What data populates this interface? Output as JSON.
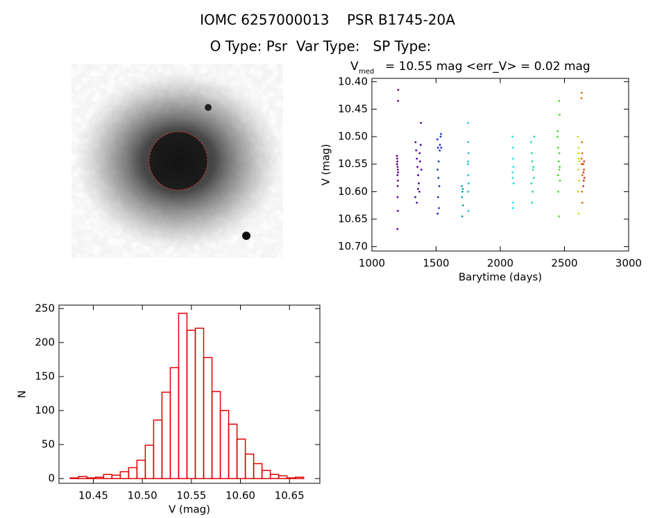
{
  "header": {
    "title": "IOMC 6257000013    PSR B1745-20A",
    "subtitle": "O Type: Psr  Var Type:   SP Type:"
  },
  "chart_data": [
    {
      "type": "scatter",
      "title": "V",
      "title_subscript": "med",
      "title_rest": "= 10.55 mag <err_V> = 0.02 mag",
      "x_label": "Barytime (days)",
      "y_label": "V (mag)",
      "xlim": [
        1000,
        3000
      ],
      "ylim": [
        10.708,
        10.394
      ],
      "xticks": [
        1000,
        1500,
        2000,
        2500,
        3000
      ],
      "yticks": [
        {
          "value": 10.4,
          "label": "10.40"
        },
        10.45,
        {
          "value": 10.5,
          "label": "10.50"
        },
        10.55,
        {
          "value": 10.6,
          "label": "10.60"
        },
        10.65,
        {
          "value": 10.7,
          "label": "10.70"
        }
      ],
      "series": [
        {
          "color": "#60007f",
          "x": [
            1195,
            1198,
            1200,
            1202,
            1199,
            1203,
            1201,
            1197,
            1205,
            1204,
            1200,
            1202,
            1199,
            1196,
            1204
          ],
          "values": [
            10.535,
            10.545,
            10.555,
            10.56,
            10.57,
            10.58,
            10.59,
            10.54,
            10.415,
            10.435,
            10.61,
            10.635,
            10.668,
            10.55,
            10.565
          ]
        },
        {
          "color": "#50009a",
          "x": [
            1340,
            1345,
            1350,
            1355,
            1360,
            1365,
            1370,
            1375,
            1380,
            1385,
            1338,
            1382,
            1350,
            1372,
            1360
          ],
          "values": [
            10.51,
            10.525,
            10.54,
            10.555,
            10.57,
            10.585,
            10.6,
            10.545,
            10.515,
            10.56,
            10.61,
            10.475,
            10.62,
            10.53,
            10.595
          ]
        },
        {
          "color": "#2030c8",
          "x": [
            1510,
            1515,
            1520,
            1512,
            1518,
            1525,
            1530,
            1535,
            1540,
            1515,
            1512,
            1522,
            1528,
            1538
          ],
          "values": [
            10.505,
            10.52,
            10.545,
            10.56,
            10.575,
            10.59,
            10.515,
            10.5,
            10.52,
            10.61,
            10.64,
            10.63,
            10.525,
            10.495
          ]
        },
        {
          "color": "#10a0b8",
          "x": [
            1700,
            1705,
            1702,
            1708,
            1703,
            1710
          ],
          "values": [
            10.59,
            10.6,
            10.61,
            10.595,
            10.645,
            10.625
          ]
        },
        {
          "color": "#20c0d8",
          "x": [
            1748,
            1750,
            1752,
            1749,
            1751,
            1753,
            1750,
            1752,
            1748
          ],
          "values": [
            10.475,
            10.51,
            10.53,
            10.55,
            10.57,
            10.585,
            10.6,
            10.635,
            10.545
          ]
        },
        {
          "color": "#20e0e0",
          "x": [
            2095,
            2098,
            2100,
            2102,
            2097,
            2103,
            2099,
            2101,
            2096
          ],
          "values": [
            10.5,
            10.52,
            10.54,
            10.555,
            10.575,
            10.585,
            10.63,
            10.62,
            10.565
          ]
        },
        {
          "color": "#20e090",
          "x": [
            2240,
            2245,
            2250,
            2255,
            2260,
            2265,
            2248,
            2252,
            2258,
            2243
          ],
          "values": [
            10.51,
            10.53,
            10.545,
            10.56,
            10.575,
            10.5,
            10.62,
            10.6,
            10.555,
            10.585
          ]
        },
        {
          "color": "#40e020",
          "x": [
            2445,
            2450,
            2455,
            2460,
            2465,
            2452,
            2458,
            2462,
            2448,
            2456,
            2463,
            2450,
            2460
          ],
          "values": [
            10.5,
            10.52,
            10.545,
            10.56,
            10.58,
            10.6,
            10.435,
            10.46,
            10.49,
            10.645,
            10.555,
            10.57,
            10.53
          ]
        },
        {
          "color": "#c8e000",
          "x": [
            2605,
            2610,
            2612,
            2608,
            2615,
            2606,
            2611,
            2614,
            2609
          ],
          "values": [
            10.5,
            10.52,
            10.54,
            10.56,
            10.58,
            10.6,
            10.64,
            10.545,
            10.53
          ]
        },
        {
          "color": "#e07000",
          "x": [
            2632,
            2634,
            2636,
            2638,
            2635,
            2640,
            2637,
            2639,
            2633
          ],
          "values": [
            10.43,
            10.42,
            10.51,
            10.53,
            10.55,
            10.57,
            10.6,
            10.62,
            10.54
          ]
        },
        {
          "color": "#e03010",
          "x": [
            2645,
            2648,
            2650,
            2652,
            2655,
            2647,
            2653
          ],
          "values": [
            10.55,
            10.565,
            10.58,
            10.56,
            10.575,
            10.59,
            10.545
          ]
        }
      ]
    },
    {
      "type": "histogram",
      "x_label": "V (mag)",
      "y_label": "N",
      "color": "#e00000",
      "xlim": [
        10.415,
        10.681
      ],
      "ylim": [
        -7,
        255
      ],
      "xticks": [
        10.45,
        {
          "value": 10.5,
          "label": "10.50"
        },
        10.55,
        {
          "value": 10.6,
          "label": "10.60"
        },
        10.65
      ],
      "yticks": [
        0,
        50,
        100,
        150,
        200,
        250
      ],
      "bins": [
        10.4265,
        10.435,
        10.4435,
        10.452,
        10.4605,
        10.469,
        10.4775,
        10.486,
        10.4945,
        10.503,
        10.5115,
        10.52,
        10.5285,
        10.537,
        10.5455,
        10.554,
        10.5625,
        10.571,
        10.5795,
        10.588,
        10.5965,
        10.605,
        10.6135,
        10.622,
        10.6305,
        10.639,
        10.6475,
        10.656,
        10.6645,
        10.673
      ],
      "values": [
        1,
        3,
        1,
        2,
        6,
        5,
        10,
        16,
        27,
        49,
        86,
        127,
        163,
        243,
        218,
        221,
        178,
        128,
        100,
        80,
        58,
        36,
        22,
        12,
        6,
        4,
        1,
        2,
        0
      ]
    }
  ]
}
